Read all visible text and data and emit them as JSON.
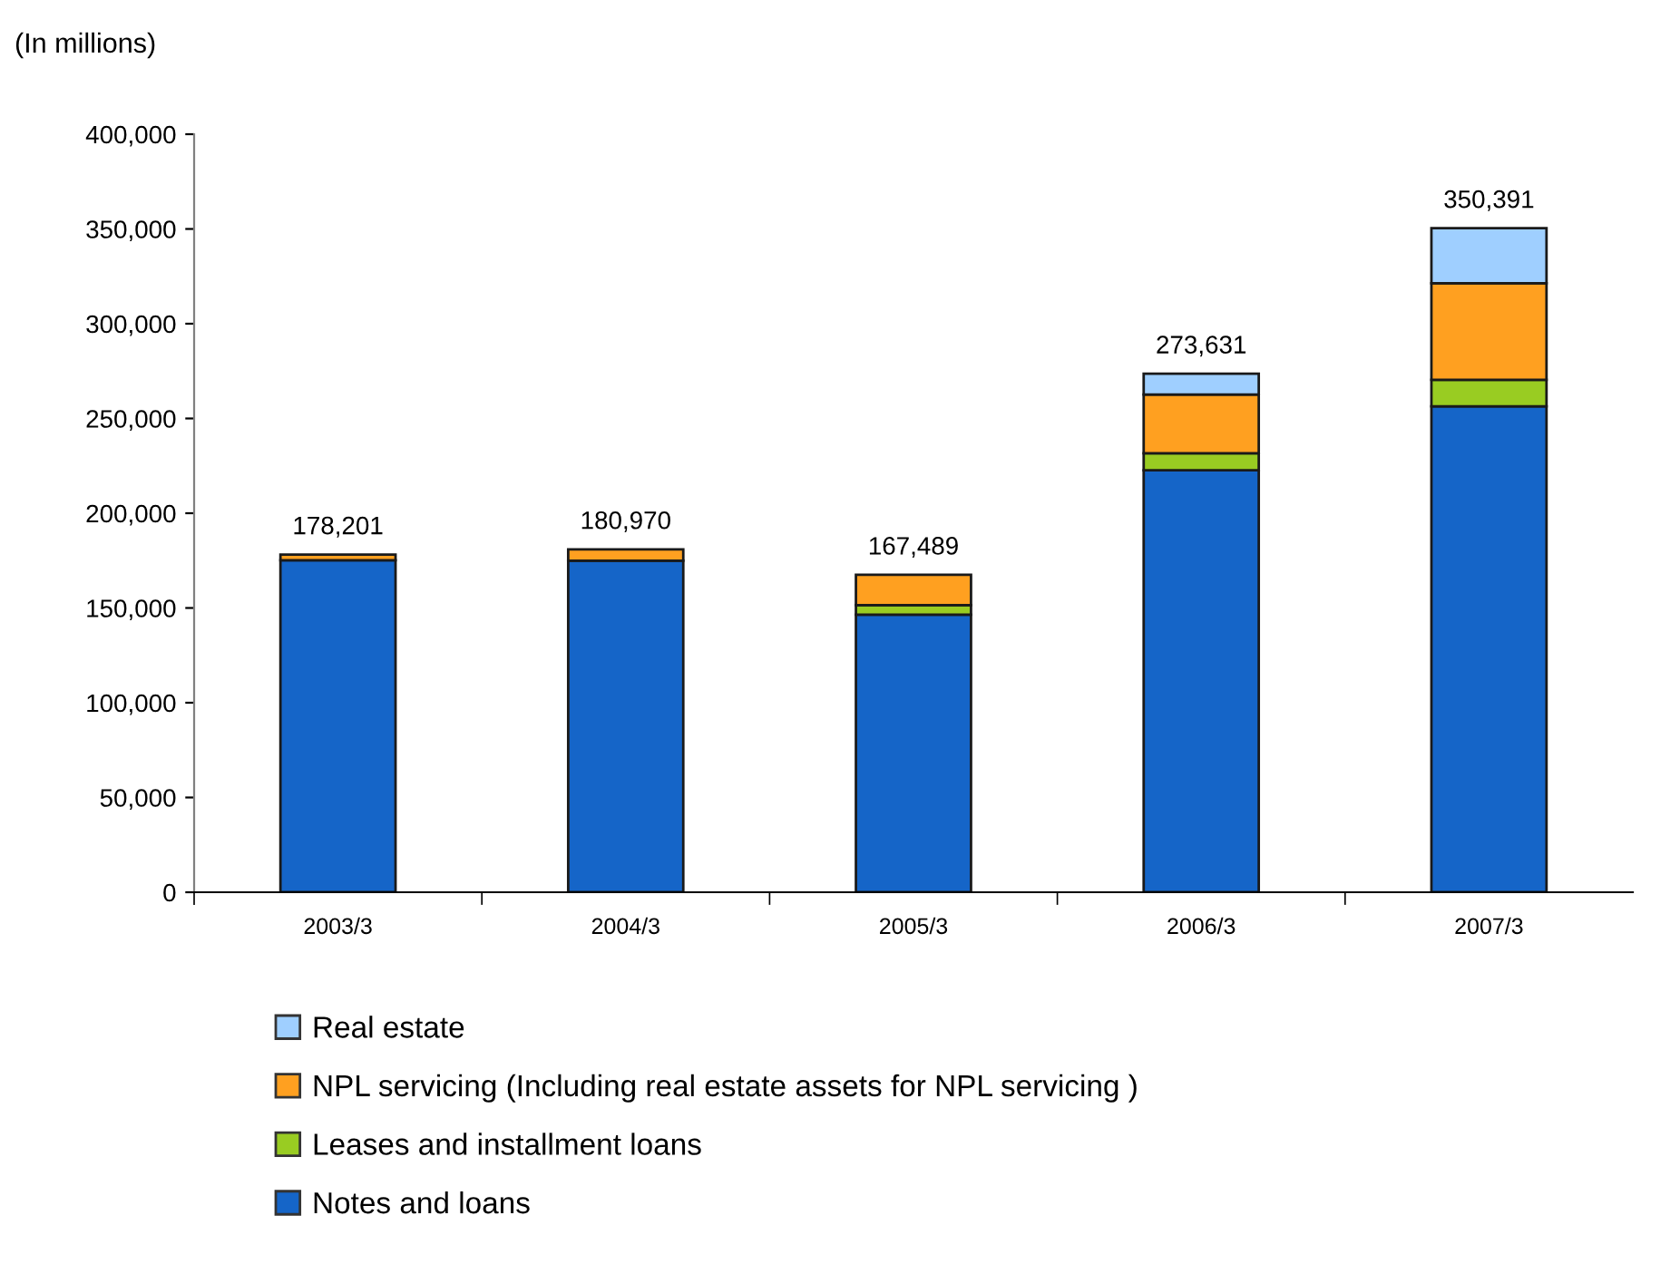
{
  "chart_data": {
    "type": "bar",
    "stacked": true,
    "ylabel": "(In millions)",
    "categories": [
      "2003/3",
      "2004/3",
      "2005/3",
      "2006/3",
      "2007/3"
    ],
    "series": [
      {
        "name": "Notes and loans",
        "color": "#1565c8",
        "values": [
          175201,
          174970,
          146489,
          222631,
          256391
        ]
      },
      {
        "name": "Leases and installment loans",
        "color": "#99cc22",
        "values": [
          null,
          null,
          5000,
          9000,
          14000
        ]
      },
      {
        "name": "NPL servicing (Including real estate assets for NPL servicing )",
        "color": "#ffa020",
        "values": [
          3000,
          6000,
          16000,
          31000,
          51000
        ]
      },
      {
        "name": "Real estate",
        "color": "#9fcfff",
        "values": [
          null,
          null,
          null,
          11000,
          29000
        ]
      }
    ],
    "totals": [
      "178,201",
      "180,970",
      "167,489",
      "273,631",
      "350,391"
    ],
    "ylim": [
      0,
      400000
    ],
    "yticks": [
      {
        "value": 0,
        "label": "0"
      },
      {
        "value": 50000,
        "label": "50,000"
      },
      {
        "value": 100000,
        "label": "100,000"
      },
      {
        "value": 150000,
        "label": "150,000"
      },
      {
        "value": 200000,
        "label": "200,000"
      },
      {
        "value": 250000,
        "label": "250,000"
      },
      {
        "value": 300000,
        "label": "300,000"
      },
      {
        "value": 350000,
        "label": "350,000"
      },
      {
        "value": 400000,
        "label": "400,000"
      }
    ],
    "grid": false,
    "legend": "bottom"
  }
}
